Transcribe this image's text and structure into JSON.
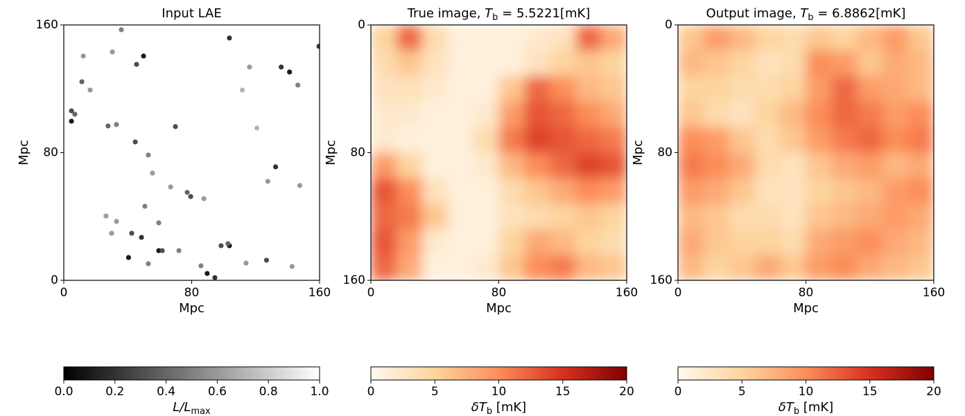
{
  "chart_data": [
    {
      "type": "scatter",
      "title": "Input LAE",
      "xlabel": "Mpc",
      "ylabel": "Mpc",
      "xlim": [
        0,
        160
      ],
      "ylim": [
        0,
        160
      ],
      "xticks": [
        0,
        80,
        160
      ],
      "yticks": [
        0,
        80,
        160
      ],
      "x": [
        159.6,
        103.6,
        49.9,
        45.5,
        136,
        141.2,
        146.4,
        4.8,
        4.8,
        6.9,
        27.7,
        32.9,
        44.7,
        69.8,
        52.9,
        132.5,
        77.2,
        79.4,
        87.6,
        127.6,
        147.6,
        59.4,
        50.7,
        42.5,
        48.6,
        59.4,
        61.6,
        40.5,
        103.6,
        102.7,
        98.4,
        89.7,
        94.5,
        85.8,
        126.8,
        72.0,
        52.9,
        36.0,
        30.4,
        11.3,
        16.5,
        116.2,
        55.5,
        66.8,
        26.4,
        29.9,
        114.0,
        142.8,
        33.0,
        12.2,
        111.7,
        120.8
      ],
      "y": [
        146.6,
        151.8,
        140.5,
        135.3,
        133.6,
        130.5,
        122.3,
        106.2,
        99.7,
        104.1,
        96.7,
        97.6,
        86.7,
        96.3,
        78.5,
        71.1,
        55.1,
        52.5,
        51.2,
        62.0,
        59.4,
        36.0,
        46.4,
        29.5,
        26.9,
        18.6,
        18.6,
        14.3,
        21.7,
        23.0,
        21.7,
        4.3,
        1.7,
        9.1,
        12.6,
        18.6,
        10.4,
        157.0,
        143.1,
        124.4,
        119.2,
        133.6,
        67.2,
        58.5,
        40.3,
        29.5,
        10.8,
        8.7,
        36.9,
        140.5,
        119.2,
        95.4
      ],
      "values": [
        0.2,
        0.2,
        0.1,
        0.3,
        0.2,
        0.1,
        0.5,
        0.3,
        0.1,
        0.4,
        0.4,
        0.5,
        0.3,
        0.3,
        0.5,
        0.2,
        0.4,
        0.3,
        0.6,
        0.6,
        0.6,
        0.5,
        0.5,
        0.3,
        0.2,
        0.1,
        0.3,
        0.1,
        0.1,
        0.4,
        0.3,
        0.1,
        0.2,
        0.5,
        0.3,
        0.5,
        0.5,
        0.5,
        0.6,
        0.4,
        0.6,
        0.6,
        0.6,
        0.6,
        0.6,
        0.6,
        0.6,
        0.6,
        0.6,
        0.6,
        0.7,
        0.7
      ],
      "colormap": [
        "#000000",
        "#ffffff"
      ],
      "clim": [
        0,
        1
      ],
      "colorbar_ticks": [
        {
          "value": 0,
          "label": "0.0"
        },
        0.2,
        0.4,
        0.6,
        0.8,
        {
          "value": 1,
          "label": "1.0"
        }
      ],
      "colorbar_label": {
        "symbol": "L/L",
        "subscript": "max"
      }
    },
    {
      "type": "heatmap",
      "title": {
        "prefix": "True image, ",
        "symbol": "T",
        "subscript": "b",
        "suffix": " = 5.5221[mK]"
      },
      "xlabel": "Mpc",
      "ylabel": "Mpc",
      "xlim": [
        0,
        160
      ],
      "ylim": [
        160,
        0
      ],
      "xticks": [
        0,
        80,
        160
      ],
      "yticks": [
        0,
        80,
        160
      ],
      "xbins": [
        0,
        16,
        32,
        48,
        64,
        80,
        96,
        112,
        128,
        144,
        160
      ],
      "ybins": [
        0,
        16,
        32,
        48,
        64,
        80,
        96,
        112,
        128,
        144,
        160
      ],
      "values": [
        [
          5,
          12,
          4,
          1,
          1,
          1,
          2,
          3,
          12,
          8
        ],
        [
          4,
          6,
          3,
          1,
          1,
          1,
          3,
          5,
          6,
          5
        ],
        [
          3,
          3,
          2,
          1,
          1,
          6,
          12,
          10,
          7,
          6
        ],
        [
          2,
          2,
          1,
          1,
          2,
          9,
          13,
          12,
          10,
          8
        ],
        [
          2,
          1,
          1,
          1,
          4,
          11,
          14,
          13,
          12,
          11
        ],
        [
          9,
          5,
          1,
          1,
          2,
          7,
          10,
          12,
          14,
          13
        ],
        [
          13,
          10,
          3,
          1,
          1,
          4,
          6,
          8,
          10,
          9
        ],
        [
          12,
          11,
          6,
          1,
          1,
          3,
          4,
          5,
          6,
          5
        ],
        [
          13,
          9,
          2,
          1,
          1,
          5,
          8,
          7,
          5,
          4
        ],
        [
          12,
          8,
          1,
          1,
          2,
          6,
          10,
          11,
          7,
          6
        ]
      ],
      "colormap": [
        "#fff7ec",
        "#fdd49e",
        "#fc8d59",
        "#d7301f",
        "#7f0000"
      ],
      "clim": [
        0,
        20
      ],
      "colorbar_ticks": [
        0,
        5,
        10,
        15,
        20
      ],
      "colorbar_label": {
        "symbol": "δT",
        "subscript": "b",
        "suffix": " [mK]"
      }
    },
    {
      "type": "heatmap",
      "title": {
        "prefix": "Output image, ",
        "symbol": "T",
        "subscript": "b",
        "suffix": " = 6.8862[mK]"
      },
      "xlabel": "Mpc",
      "ylabel": "Mpc",
      "xlim": [
        0,
        160
      ],
      "ylim": [
        160,
        0
      ],
      "xticks": [
        0,
        80,
        160
      ],
      "yticks": [
        0,
        80,
        160
      ],
      "xbins": [
        0,
        16,
        32,
        48,
        64,
        80,
        96,
        112,
        128,
        144,
        160
      ],
      "ybins": [
        0,
        16,
        32,
        48,
        64,
        80,
        96,
        112,
        128,
        144,
        160
      ],
      "values": [
        [
          6,
          9,
          7,
          5,
          4,
          6,
          5,
          7,
          9,
          6
        ],
        [
          7,
          6,
          5,
          3,
          4,
          10,
          9,
          6,
          8,
          7
        ],
        [
          5,
          5,
          4,
          4,
          5,
          9,
          12,
          9,
          8,
          7
        ],
        [
          6,
          4,
          3,
          5,
          7,
          10,
          12,
          11,
          9,
          10
        ],
        [
          10,
          9,
          6,
          4,
          6,
          9,
          11,
          12,
          10,
          11
        ],
        [
          11,
          10,
          8,
          4,
          3,
          6,
          8,
          9,
          7,
          8
        ],
        [
          9,
          8,
          6,
          3,
          3,
          5,
          6,
          7,
          9,
          10
        ],
        [
          7,
          6,
          4,
          4,
          3,
          6,
          7,
          8,
          9,
          8
        ],
        [
          8,
          6,
          5,
          5,
          4,
          8,
          9,
          10,
          8,
          7
        ],
        [
          7,
          5,
          6,
          8,
          6,
          9,
          10,
          8,
          7,
          6
        ]
      ],
      "colormap": [
        "#fff7ec",
        "#fdd49e",
        "#fc8d59",
        "#d7301f",
        "#7f0000"
      ],
      "clim": [
        0,
        20
      ],
      "colorbar_ticks": [
        0,
        5,
        10,
        15,
        20
      ],
      "colorbar_label": {
        "symbol": "δT",
        "subscript": "b",
        "suffix": " [mK]"
      }
    }
  ]
}
